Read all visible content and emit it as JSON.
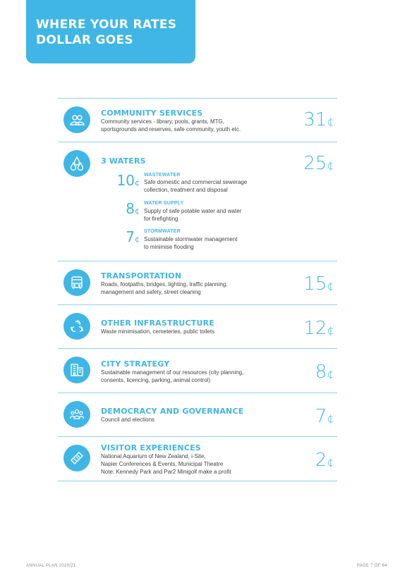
{
  "header": {
    "title_line1": "WHERE YOUR RATES",
    "title_line2": "DOLLAR GOES"
  },
  "categories": [
    {
      "title": "COMMUNITY SERVICES",
      "description": [
        "Community services - library, pools, grants, MTG,",
        "sportsgrounds and reserves, safe community, youth etc."
      ],
      "amount": "31",
      "unit": "¢",
      "icon": "people-icon"
    },
    {
      "title": "3 WATERS",
      "amount": "25",
      "unit": "¢",
      "icon": "water-drops-icon",
      "subitems": [
        {
          "amount": "10",
          "unit": "¢",
          "title": "WASTEWATER",
          "description": [
            "Safe domestic and commercial sewerage",
            "collection, treatment and disposal"
          ]
        },
        {
          "amount": "8",
          "unit": "¢",
          "title": "WATER SUPPLY",
          "description": [
            "Supply of safe potable water and water",
            "for firefighting"
          ]
        },
        {
          "amount": "7",
          "unit": "¢",
          "title": "STORMWATER",
          "description": [
            "Sustainable stormwater management",
            "to minimise flooding"
          ]
        }
      ]
    },
    {
      "title": "TRANSPORTATION",
      "description": [
        "Roads, footpaths, bridges, lighting, traffic planning,",
        "management and safety, street cleaning"
      ],
      "amount": "15",
      "unit": "¢",
      "icon": "bus-icon"
    },
    {
      "title": "OTHER INFRASTRUCTURE",
      "description": [
        "Waste minimisation, cemeteries, public toilets"
      ],
      "amount": "12",
      "unit": "¢",
      "icon": "recycle-icon"
    },
    {
      "title": "CITY STRATEGY",
      "description": [
        "Sustainable management of our resources (city planning,",
        "consents, licencing, parking, animal control)"
      ],
      "amount": "8",
      "unit": "¢",
      "icon": "buildings-icon"
    },
    {
      "title": "DEMOCRACY AND GOVERNANCE",
      "description": [
        "Council and elections"
      ],
      "amount": "7",
      "unit": "¢",
      "icon": "group-icon"
    },
    {
      "title": "VISITOR EXPERIENCES",
      "description": [
        "National Aquarium of New Zealand, i-Site,",
        "Napier Conferences & Events, Municipal Theatre",
        "Note: Kennedy Park and Par2 Minigolf make a profit"
      ],
      "amount": "2",
      "unit": "¢",
      "icon": "ticket-icon"
    }
  ],
  "footer": {
    "left": "ANNUAL PLAN 2020/21",
    "right": "PAGE 7 OF 64"
  }
}
